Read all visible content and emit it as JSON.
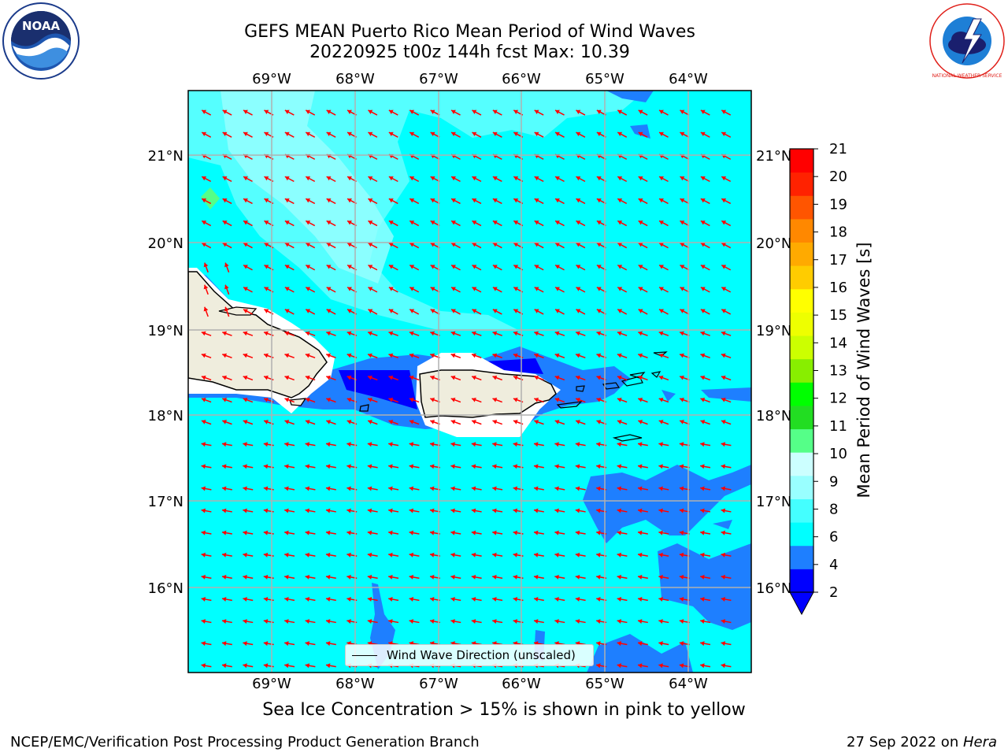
{
  "title_line1": "GEFS MEAN Puerto Rico Mean Period of Wind Waves",
  "title_line2": "20220925 t00z 144h fcst   Max: 10.39",
  "map": {
    "lon_ticks": [
      "69°W",
      "68°W",
      "67°W",
      "66°W",
      "65°W",
      "64°W"
    ],
    "lat_ticks": [
      "21°N",
      "20°N",
      "19°N",
      "18°N",
      "17°N",
      "16°N"
    ],
    "legend_label": "Wind Wave Direction (unscaled)",
    "arrow_color": "#ff0000",
    "background_color": "#00ffff"
  },
  "colorbar": {
    "label": "Mean Period of Wind Waves [s]",
    "ticks": [
      "21",
      "20",
      "19",
      "18",
      "17",
      "16",
      "15",
      "14",
      "13",
      "12",
      "11",
      "10",
      "9",
      "8",
      "6",
      "4",
      "2"
    ],
    "colors": [
      "#0000ff",
      "#1e7fff",
      "#00ffff",
      "#44ffff",
      "#99ffff",
      "#ccffff",
      "#55ff88",
      "#22dd22",
      "#00ff00",
      "#88ee00",
      "#ccff00",
      "#eeff00",
      "#ffff00",
      "#ffcc00",
      "#ffaa00",
      "#ff8800",
      "#ff5500",
      "#ff2200",
      "#ff0000"
    ]
  },
  "footnote": "Sea Ice Concentration > 15% is shown in pink to yellow",
  "credit": "NCEP/EMC/Verification Post Processing Product Generation Branch",
  "date_text": "27 Sep 2022 on ",
  "host": "Hera",
  "logos": {
    "left": "NOAA",
    "right": "NATIONAL WEATHER SERVICE"
  }
}
